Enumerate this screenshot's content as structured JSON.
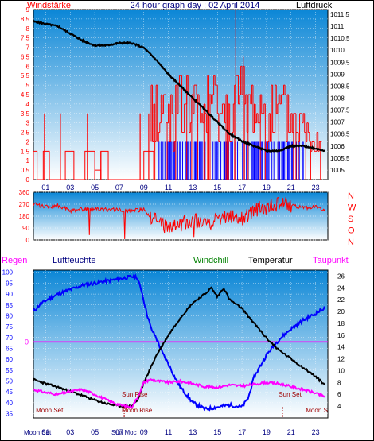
{
  "page_title": "24 hour graph day : 02 April 2014",
  "colors": {
    "wind": "#ff0000",
    "gust": "#ff0000",
    "wind_blue": "#0000ff",
    "pressure": "#000000",
    "direction": "#ff0000",
    "humidity": "#0000ff",
    "temperature": "#000000",
    "dewpoint": "#ff00ff",
    "windchill": "#008000",
    "rain": "#ff00ff",
    "panel_top": "#0b86d6",
    "panel_bottom": "#ffffff"
  },
  "chart_data": [
    {
      "type": "bar",
      "name": "wind-panel",
      "left_label": "Windstärke",
      "right_label": "Luftdruck",
      "x_ticks": [
        "01",
        "03",
        "05",
        "07",
        "09",
        "11",
        "13",
        "15",
        "17",
        "19",
        "21",
        "23"
      ],
      "x_range": [
        0,
        24
      ],
      "y_left_range": [
        0,
        9
      ],
      "y_left_ticks": [
        "0",
        "0.5",
        "1",
        "1.5",
        "2",
        "2.5",
        "3",
        "3.5",
        "4",
        "4.5",
        "5",
        "5.5",
        "6",
        "6.5",
        "7",
        "7.5",
        "8",
        "8.5",
        "9"
      ],
      "y_right_range": [
        1004.6,
        1011.7
      ],
      "y_right_ticks": [
        "1005",
        "1005.5",
        "1006",
        "1006.5",
        "1007",
        "1007.5",
        "1008",
        "1008.5",
        "1009",
        "1009.5",
        "1010",
        "1010.5",
        "1011",
        "1011.5"
      ],
      "pressure": {
        "x": [
          0,
          1,
          2,
          3,
          4,
          5,
          6,
          7,
          8,
          9,
          10,
          11,
          12,
          13,
          14,
          15,
          16,
          17,
          18,
          19,
          20,
          21,
          22,
          23,
          23.8
        ],
        "y": [
          1011.2,
          1011.1,
          1011.0,
          1010.7,
          1010.4,
          1010.2,
          1010.2,
          1010.3,
          1010.3,
          1010.1,
          1009.6,
          1009.0,
          1008.5,
          1008.0,
          1007.5,
          1007.0,
          1006.5,
          1006.2,
          1006.0,
          1005.8,
          1005.8,
          1006.0,
          1006.0,
          1005.9,
          1005.8
        ]
      },
      "wind_blocks": [
        {
          "x0": 0,
          "x1": 0.3,
          "v": 1.5
        },
        {
          "x0": 0.3,
          "x1": 0.8,
          "v": 0
        },
        {
          "x0": 0.8,
          "x1": 1.3,
          "v": 1.5
        },
        {
          "x0": 1.3,
          "x1": 2.6,
          "v": 0
        },
        {
          "x0": 2.6,
          "x1": 3.3,
          "v": 1.5
        },
        {
          "x0": 3.3,
          "x1": 4.2,
          "v": 0
        },
        {
          "x0": 4.2,
          "x1": 5.0,
          "v": 1.5
        },
        {
          "x0": 5.0,
          "x1": 5.5,
          "v": 0.5
        },
        {
          "x0": 5.5,
          "x1": 6.1,
          "v": 1.5
        },
        {
          "x0": 6.1,
          "x1": 9.0,
          "v": 0
        },
        {
          "x0": 9.0,
          "x1": 9.8,
          "v": 1.5
        }
      ],
      "gust_spikes": [
        {
          "x": 0.9,
          "v": 3.5
        },
        {
          "x": 2.2,
          "v": 3.5
        },
        {
          "x": 4.4,
          "v": 3.5
        },
        {
          "x": 5.5,
          "v": 1.5
        },
        {
          "x": 8.7,
          "v": 3.5
        },
        {
          "x": 9.4,
          "v": 3.5
        },
        {
          "x": 16.5,
          "v": 9.0
        },
        {
          "x": 17.1,
          "v": 6.5
        }
      ],
      "wind_envelope": {
        "x": [
          9.6,
          10.5,
          11.5,
          12.5,
          13.5,
          14.5,
          15.5,
          16.5,
          17.5,
          18.5,
          19.5,
          20.5,
          21.5,
          22.5,
          23.5
        ],
        "top": [
          5.5,
          5.5,
          5.5,
          6.0,
          5.0,
          6.0,
          5.0,
          6.5,
          6.0,
          5.5,
          5.5,
          5.0,
          4.5,
          3.5,
          2.5
        ],
        "bottom": [
          1.5,
          2.0,
          1.5,
          2.0,
          2.0,
          2.0,
          2.0,
          1.5,
          2.0,
          1.5,
          1.5,
          1.5,
          1.5,
          1.5,
          1.5
        ]
      },
      "wind_blue_range": [
        10.0,
        22.0
      ],
      "wind_blue_level": 2.0
    },
    {
      "type": "line",
      "name": "direction-panel",
      "right_labels": [
        "N",
        "W",
        "S",
        "O",
        "N"
      ],
      "y_range": [
        0,
        360
      ],
      "y_ticks": [
        "0",
        "90",
        "180",
        "270",
        "360"
      ],
      "x_range": [
        0,
        24
      ],
      "x": [
        0,
        1,
        2,
        3,
        4,
        5,
        6,
        7,
        8,
        9,
        10,
        11,
        12,
        13,
        14,
        15,
        16,
        17,
        18,
        19,
        20,
        21,
        22,
        23,
        23.8
      ],
      "y": [
        270,
        250,
        260,
        220,
        230,
        230,
        230,
        230,
        220,
        230,
        140,
        90,
        120,
        150,
        130,
        150,
        190,
        160,
        230,
        250,
        270,
        260,
        240,
        250,
        220
      ]
    },
    {
      "type": "line",
      "name": "temp-panel",
      "labels": {
        "rain": "Regen",
        "humidity": "Luftfeuchte",
        "windchill": "Windchill",
        "temperature": "Temperatur",
        "dewpoint": "Taupunkt"
      },
      "y_left_range": [
        33,
        101
      ],
      "y_left_ticks": [
        "35",
        "40",
        "45",
        "50",
        "55",
        "60",
        "65",
        "70",
        "75",
        "80",
        "85",
        "90",
        "95",
        "100"
      ],
      "y_right_range": [
        2,
        27
      ],
      "y_right_ticks": [
        "4",
        "6",
        "8",
        "10",
        "12",
        "14",
        "16",
        "18",
        "20",
        "22",
        "24",
        "26"
      ],
      "rain_label": "0",
      "rain_level_pct": 68,
      "x_ticks": [
        "01",
        "03",
        "05",
        "07",
        "09",
        "11",
        "13",
        "15",
        "17",
        "19",
        "21",
        "23"
      ],
      "x_range": [
        0,
        24
      ],
      "humidity": {
        "x": [
          0,
          0.5,
          1,
          2,
          3,
          4,
          5,
          6,
          7,
          8,
          8.4,
          8.8,
          9.2,
          9.6,
          10,
          10.5,
          11,
          11.5,
          12,
          13,
          14,
          15,
          16,
          17,
          17.5,
          18,
          19,
          20,
          21,
          22,
          23,
          23.8
        ],
        "y": [
          82,
          85,
          87,
          90,
          92,
          94,
          95,
          96,
          97,
          98,
          98,
          92,
          82,
          74,
          70,
          63,
          58,
          52,
          47,
          40,
          37,
          38,
          39,
          38,
          42,
          52,
          62,
          69,
          74,
          78,
          81,
          84
        ]
      },
      "temperature": {
        "x": [
          0,
          1,
          2,
          3,
          4,
          5,
          6,
          7,
          8,
          8.5,
          9,
          10,
          11,
          12,
          13,
          14,
          14.5,
          15,
          15.5,
          16,
          17,
          18,
          19,
          20,
          21,
          22,
          23,
          23.8
        ],
        "y": [
          8.5,
          7.8,
          7.2,
          6.5,
          5.8,
          5.0,
          4.4,
          4.0,
          4.0,
          5.0,
          8.0,
          12.5,
          16.0,
          19.0,
          21.5,
          23.0,
          24.0,
          22.5,
          24.0,
          22.0,
          20.5,
          18.0,
          15.5,
          13.5,
          12.0,
          10.5,
          9.0,
          7.5
        ]
      },
      "dewpoint": {
        "x": [
          0,
          1,
          2,
          3,
          4,
          5,
          6,
          7,
          8,
          8.5,
          9,
          9.5,
          10,
          11,
          12,
          13,
          14,
          15,
          16,
          17,
          18,
          19,
          20,
          21,
          22,
          23,
          23.8
        ],
        "y": [
          6.8,
          6.3,
          6.0,
          6.5,
          6.8,
          6.0,
          5.0,
          4.2,
          3.8,
          5.5,
          8.0,
          8.5,
          8.3,
          8.0,
          8.2,
          7.8,
          7.3,
          7.2,
          7.6,
          7.4,
          7.7,
          8.0,
          7.8,
          7.3,
          6.8,
          6.2,
          5.5
        ]
      },
      "annotations": [
        {
          "id": "moon-set-1",
          "text": "Moon Set",
          "x": 0.2,
          "level": "low"
        },
        {
          "id": "sun-rise",
          "text": "Sun Rise",
          "x": 7.2,
          "level": "mid"
        },
        {
          "id": "moon-rise",
          "text": "Moon Rise",
          "x": 7.2,
          "level": "low"
        },
        {
          "id": "sun-set",
          "text": "Sun Set",
          "x": 20.0,
          "level": "mid"
        },
        {
          "id": "moon-set-2",
          "text": "Moon Set",
          "x": 22.2,
          "level": "low"
        }
      ],
      "bottom_axis_prefix": "Moon Set",
      "bottom_axis_mid": "Sun Moc",
      "sun_rise_marker": 7.4,
      "sun_set_marker": 20.3
    }
  ]
}
